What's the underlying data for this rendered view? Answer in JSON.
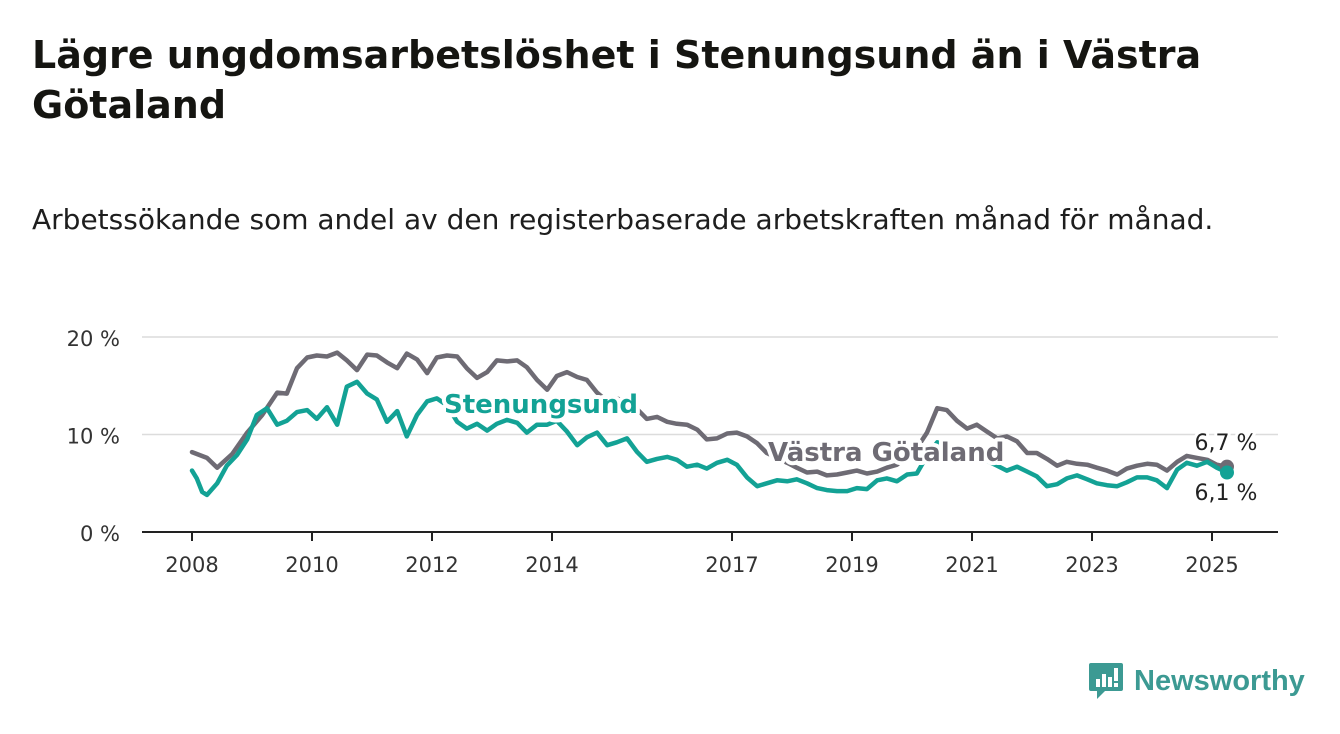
{
  "title": "Lägre ungdomsarbetslöshet i Stenungsund än i Västra Götaland",
  "subtitle": "Arbetssökande som andel av den registerbaserade arbetskraften månad för månad.",
  "brand": {
    "name": "Newsworthy",
    "icon": "newsworthy-logo-icon",
    "color": "#3c9a93"
  },
  "chart_data": {
    "type": "line",
    "title": "",
    "xlabel": "",
    "ylabel": "",
    "ylim": [
      0,
      20
    ],
    "yticks": [
      0,
      10,
      20
    ],
    "ytick_labels": [
      "0 %",
      "10 %",
      "20 %"
    ],
    "xlim": [
      2008.0,
      2026.1
    ],
    "xticks": [
      2008,
      2010,
      2012,
      2014,
      2017,
      2019,
      2021,
      2023,
      2025
    ],
    "xtick_labels": [
      "2008",
      "2010",
      "2012",
      "2014",
      "2017",
      "2019",
      "2021",
      "2023",
      "2025"
    ],
    "grid": "horizontal",
    "legend": "inline labels",
    "end_labels": {
      "Västra Götaland": "6,7 %",
      "Stenungsund": "6,1 %"
    },
    "series": [
      {
        "name": "Västra Götaland",
        "color": "#6e6b74",
        "points": [
          [
            2008.0,
            8.2
          ],
          [
            2008.25,
            7.6
          ],
          [
            2008.42,
            6.6
          ],
          [
            2008.67,
            8.0
          ],
          [
            2008.92,
            10.2
          ],
          [
            2009.17,
            12.0
          ],
          [
            2009.42,
            14.3
          ],
          [
            2009.58,
            14.2
          ],
          [
            2009.75,
            16.8
          ],
          [
            2009.92,
            17.9
          ],
          [
            2010.08,
            18.1
          ],
          [
            2010.25,
            18.0
          ],
          [
            2010.42,
            18.4
          ],
          [
            2010.58,
            17.6
          ],
          [
            2010.75,
            16.6
          ],
          [
            2010.92,
            18.2
          ],
          [
            2011.08,
            18.1
          ],
          [
            2011.25,
            17.4
          ],
          [
            2011.42,
            16.8
          ],
          [
            2011.58,
            18.3
          ],
          [
            2011.75,
            17.7
          ],
          [
            2011.92,
            16.3
          ],
          [
            2012.08,
            17.9
          ],
          [
            2012.25,
            18.1
          ],
          [
            2012.42,
            18.0
          ],
          [
            2012.58,
            16.8
          ],
          [
            2012.75,
            15.8
          ],
          [
            2012.92,
            16.4
          ],
          [
            2013.08,
            17.6
          ],
          [
            2013.25,
            17.5
          ],
          [
            2013.42,
            17.6
          ],
          [
            2013.58,
            16.9
          ],
          [
            2013.75,
            15.6
          ],
          [
            2013.92,
            14.6
          ],
          [
            2014.08,
            16.0
          ],
          [
            2014.25,
            16.4
          ],
          [
            2014.42,
            15.9
          ],
          [
            2014.58,
            15.6
          ],
          [
            2014.75,
            14.3
          ],
          [
            2014.92,
            13.4
          ],
          [
            2015.08,
            13.7
          ],
          [
            2015.25,
            13.3
          ],
          [
            2015.42,
            12.6
          ],
          [
            2015.58,
            11.6
          ],
          [
            2015.75,
            11.8
          ],
          [
            2015.92,
            11.3
          ],
          [
            2016.08,
            11.1
          ],
          [
            2016.25,
            11.0
          ],
          [
            2016.42,
            10.5
          ],
          [
            2016.58,
            9.5
          ],
          [
            2016.75,
            9.6
          ],
          [
            2016.92,
            10.1
          ],
          [
            2017.08,
            10.2
          ],
          [
            2017.25,
            9.8
          ],
          [
            2017.42,
            9.1
          ],
          [
            2017.58,
            8.1
          ],
          [
            2017.75,
            7.6
          ],
          [
            2017.92,
            7.1
          ],
          [
            2018.08,
            6.6
          ],
          [
            2018.25,
            6.1
          ],
          [
            2018.42,
            6.2
          ],
          [
            2018.58,
            5.8
          ],
          [
            2018.75,
            5.9
          ],
          [
            2018.92,
            6.1
          ],
          [
            2019.08,
            6.3
          ],
          [
            2019.25,
            6.0
          ],
          [
            2019.42,
            6.2
          ],
          [
            2019.58,
            6.6
          ],
          [
            2019.75,
            6.9
          ],
          [
            2019.92,
            7.8
          ],
          [
            2020.08,
            8.6
          ],
          [
            2020.25,
            10.2
          ],
          [
            2020.42,
            12.7
          ],
          [
            2020.58,
            12.5
          ],
          [
            2020.75,
            11.4
          ],
          [
            2020.92,
            10.6
          ],
          [
            2021.08,
            11.0
          ],
          [
            2021.25,
            10.3
          ],
          [
            2021.42,
            9.6
          ],
          [
            2021.58,
            9.8
          ],
          [
            2021.75,
            9.3
          ],
          [
            2021.92,
            8.1
          ],
          [
            2022.08,
            8.1
          ],
          [
            2022.25,
            7.5
          ],
          [
            2022.42,
            6.8
          ],
          [
            2022.58,
            7.2
          ],
          [
            2022.75,
            7.0
          ],
          [
            2022.92,
            6.9
          ],
          [
            2023.08,
            6.6
          ],
          [
            2023.25,
            6.3
          ],
          [
            2023.42,
            5.9
          ],
          [
            2023.58,
            6.5
          ],
          [
            2023.75,
            6.8
          ],
          [
            2023.92,
            7.0
          ],
          [
            2024.08,
            6.9
          ],
          [
            2024.25,
            6.3
          ],
          [
            2024.42,
            7.2
          ],
          [
            2024.58,
            7.8
          ],
          [
            2024.75,
            7.6
          ],
          [
            2024.92,
            7.4
          ],
          [
            2025.08,
            6.9
          ],
          [
            2025.25,
            6.7
          ]
        ]
      },
      {
        "name": "Stenungsund",
        "color": "#13a295",
        "points": [
          [
            2008.0,
            6.3
          ],
          [
            2008.08,
            5.5
          ],
          [
            2008.17,
            4.1
          ],
          [
            2008.25,
            3.8
          ],
          [
            2008.42,
            5.0
          ],
          [
            2008.58,
            6.8
          ],
          [
            2008.75,
            7.9
          ],
          [
            2008.92,
            9.5
          ],
          [
            2009.08,
            12.0
          ],
          [
            2009.25,
            12.7
          ],
          [
            2009.42,
            11.0
          ],
          [
            2009.58,
            11.4
          ],
          [
            2009.75,
            12.3
          ],
          [
            2009.92,
            12.5
          ],
          [
            2010.08,
            11.6
          ],
          [
            2010.25,
            12.8
          ],
          [
            2010.42,
            11.0
          ],
          [
            2010.58,
            14.9
          ],
          [
            2010.75,
            15.4
          ],
          [
            2010.92,
            14.2
          ],
          [
            2011.08,
            13.6
          ],
          [
            2011.25,
            11.3
          ],
          [
            2011.42,
            12.4
          ],
          [
            2011.58,
            9.8
          ],
          [
            2011.75,
            12.0
          ],
          [
            2011.92,
            13.4
          ],
          [
            2012.08,
            13.7
          ],
          [
            2012.25,
            13.0
          ],
          [
            2012.42,
            11.3
          ],
          [
            2012.58,
            10.6
          ],
          [
            2012.75,
            11.1
          ],
          [
            2012.92,
            10.4
          ],
          [
            2013.08,
            11.1
          ],
          [
            2013.25,
            11.5
          ],
          [
            2013.42,
            11.2
          ],
          [
            2013.58,
            10.2
          ],
          [
            2013.75,
            11.0
          ],
          [
            2013.92,
            11.0
          ],
          [
            2014.08,
            11.4
          ],
          [
            2014.25,
            10.3
          ],
          [
            2014.42,
            8.9
          ],
          [
            2014.58,
            9.7
          ],
          [
            2014.75,
            10.2
          ],
          [
            2014.92,
            8.9
          ],
          [
            2015.08,
            9.2
          ],
          [
            2015.25,
            9.6
          ],
          [
            2015.42,
            8.2
          ],
          [
            2015.58,
            7.2
          ],
          [
            2015.75,
            7.5
          ],
          [
            2015.92,
            7.7
          ],
          [
            2016.08,
            7.4
          ],
          [
            2016.25,
            6.7
          ],
          [
            2016.42,
            6.9
          ],
          [
            2016.58,
            6.5
          ],
          [
            2016.75,
            7.1
          ],
          [
            2016.92,
            7.4
          ],
          [
            2017.08,
            6.9
          ],
          [
            2017.25,
            5.6
          ],
          [
            2017.42,
            4.7
          ],
          [
            2017.58,
            5.0
          ],
          [
            2017.75,
            5.3
          ],
          [
            2017.92,
            5.2
          ],
          [
            2018.08,
            5.4
          ],
          [
            2018.25,
            5.0
          ],
          [
            2018.42,
            4.5
          ],
          [
            2018.58,
            4.3
          ],
          [
            2018.75,
            4.2
          ],
          [
            2018.92,
            4.2
          ],
          [
            2019.08,
            4.5
          ],
          [
            2019.25,
            4.4
          ],
          [
            2019.42,
            5.3
          ],
          [
            2019.58,
            5.5
          ],
          [
            2019.75,
            5.2
          ],
          [
            2019.92,
            5.9
          ],
          [
            2020.08,
            6.0
          ],
          [
            2020.25,
            7.8
          ],
          [
            2020.42,
            9.2
          ],
          [
            2020.58,
            8.7
          ],
          [
            2020.75,
            8.5
          ],
          [
            2020.92,
            7.6
          ],
          [
            2021.08,
            7.6
          ],
          [
            2021.25,
            7.3
          ],
          [
            2021.42,
            6.8
          ],
          [
            2021.58,
            6.3
          ],
          [
            2021.75,
            6.7
          ],
          [
            2021.92,
            6.2
          ],
          [
            2022.08,
            5.7
          ],
          [
            2022.25,
            4.7
          ],
          [
            2022.42,
            4.9
          ],
          [
            2022.58,
            5.5
          ],
          [
            2022.75,
            5.8
          ],
          [
            2022.92,
            5.4
          ],
          [
            2023.08,
            5.0
          ],
          [
            2023.25,
            4.8
          ],
          [
            2023.42,
            4.7
          ],
          [
            2023.58,
            5.1
          ],
          [
            2023.75,
            5.6
          ],
          [
            2023.92,
            5.6
          ],
          [
            2024.08,
            5.3
          ],
          [
            2024.25,
            4.5
          ],
          [
            2024.42,
            6.4
          ],
          [
            2024.58,
            7.1
          ],
          [
            2024.75,
            6.8
          ],
          [
            2024.92,
            7.2
          ],
          [
            2025.08,
            6.6
          ],
          [
            2025.25,
            6.1
          ]
        ]
      }
    ]
  }
}
